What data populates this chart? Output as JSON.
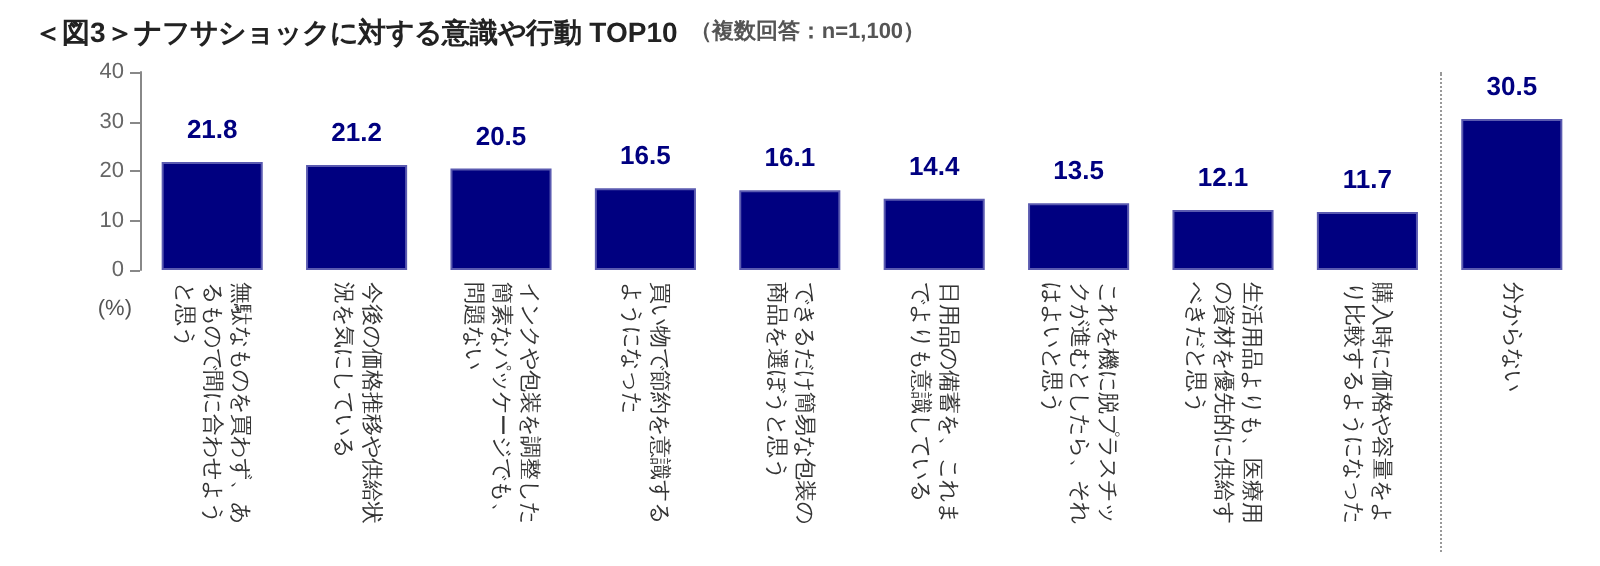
{
  "chart_data": {
    "type": "bar",
    "title": "＜図3＞ナフサショックに対する意識や行動 TOP10",
    "subtitle": "（複数回答：n=1,100）",
    "ylabel": "(%)",
    "categories": [
      "無駄なものを買わず、あるもので間に合わせようと思う",
      "今後の価格推移や供給状況を気にしている",
      "インクや包装を調整した簡素なパッケージでも、問題ない",
      "買い物で節約を意識するようになった",
      "できるだけ簡易な包装の商品を選ぼうと思う",
      "日用品の備蓄を、これまでよりも意識している",
      "これを機に脱プラスチックが進むとしたら、それはよいと思う",
      "生活用品よりも、医療用の資材を優先的に供給すべきだと思う",
      "購入時に価格や容量をより比較するようになった",
      "分からない"
    ],
    "values": [
      21.8,
      21.2,
      20.5,
      16.5,
      16.1,
      14.4,
      13.5,
      12.1,
      11.7,
      30.5
    ],
    "color": "#000080",
    "ylim": [
      0,
      40
    ],
    "yticks": [
      0,
      10,
      20,
      30,
      40
    ],
    "grid": false,
    "data_labels": true
  }
}
